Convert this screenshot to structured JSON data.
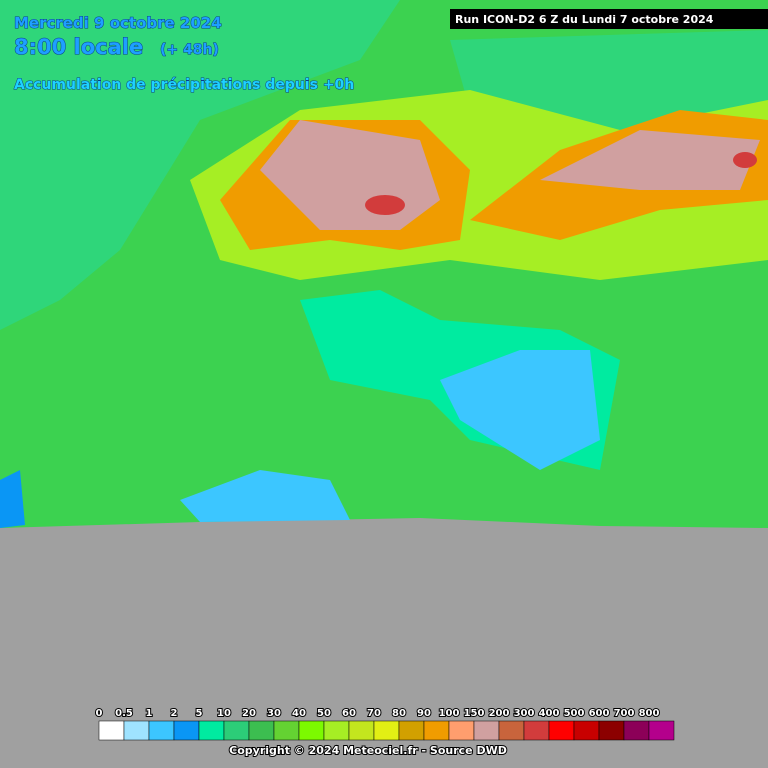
{
  "header": {
    "date": "Mercredi 9 octobre 2024",
    "time": "8:00 locale",
    "offset": "(+ 48h)",
    "product": "Accumulation de précipitations depuis +0h",
    "run": "Run ICON-D2 6 Z du Lundi 7 octobre 2024"
  },
  "legend": {
    "labels": [
      "0",
      "0.5",
      "1",
      "2",
      "5",
      "10",
      "20",
      "30",
      "40",
      "50",
      "60",
      "70",
      "80",
      "90",
      "100",
      "150",
      "200",
      "300",
      "400",
      "500",
      "600",
      "700",
      "800"
    ],
    "colors": [
      "#ffffff",
      "#9fe3ff",
      "#3cc6ff",
      "#0a96f5",
      "#00eba0",
      "#2ccd78",
      "#3cbe50",
      "#64d232",
      "#7cfa00",
      "#a6ee24",
      "#c3e61e",
      "#e2ef14",
      "#d2a000",
      "#f09c00",
      "#ff9e6e",
      "#d0a0a0",
      "#c8643c",
      "#d23c3c",
      "#ff0000",
      "#c80000",
      "#8c0000",
      "#8c0058",
      "#b4008c"
    ]
  },
  "footer": {
    "copyright": "Copyright © 2024 Meteociel.fr - Source DWD"
  }
}
